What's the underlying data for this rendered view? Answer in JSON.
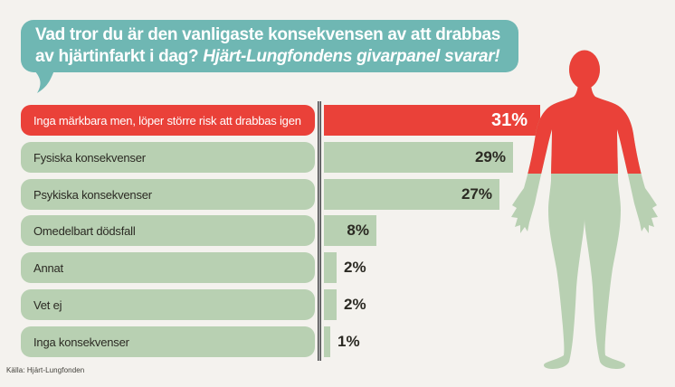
{
  "bubble": {
    "line1": "Vad tror du är den vanligaste konsekvensen av att drabbas",
    "line2_plain": "av hjärtinfarkt i dag? ",
    "line2_italic": "Hjärt-Lungfondens givarpanel svarar!"
  },
  "source": "Källa: Hjärt-Lungfonden",
  "illustration": {
    "name": "human-body-silhouette",
    "upper_body_color_meaning": "red upper body (head to chest) matching highlighted answer",
    "lower_body_color_meaning": "green lower body matching other answers"
  },
  "chart_data": {
    "type": "bar",
    "orientation": "horizontal",
    "title": "Vad tror du är den vanligaste konsekvensen av att drabbas av hjärtinfarkt i dag? Hjärt-Lungfondens givarpanel svarar!",
    "categories": [
      "Inga märkbara men, löper större risk att drabbas igen",
      "Fysiska konsekvenser",
      "Psykiska konsekvenser",
      "Omedelbart dödsfall",
      "Annat",
      "Vet ej",
      "Inga konsekvenser"
    ],
    "values": [
      31,
      29,
      27,
      8,
      2,
      2,
      1
    ],
    "value_labels": [
      "31%",
      "29%",
      "27%",
      "8%",
      "2%",
      "2%",
      "1%"
    ],
    "unit": "%",
    "highlight_index": 0,
    "xlim": [
      0,
      33
    ],
    "grid": false,
    "legend": false,
    "colors": {
      "background": "#f4f2ee",
      "highlight_bar": "#ea4139",
      "bar": "#b8d0b2",
      "bubble": "#6fb7b3",
      "axis": "#4a4a4c",
      "text_dark": "#2b2a23",
      "text_light": "#ffffff"
    }
  }
}
